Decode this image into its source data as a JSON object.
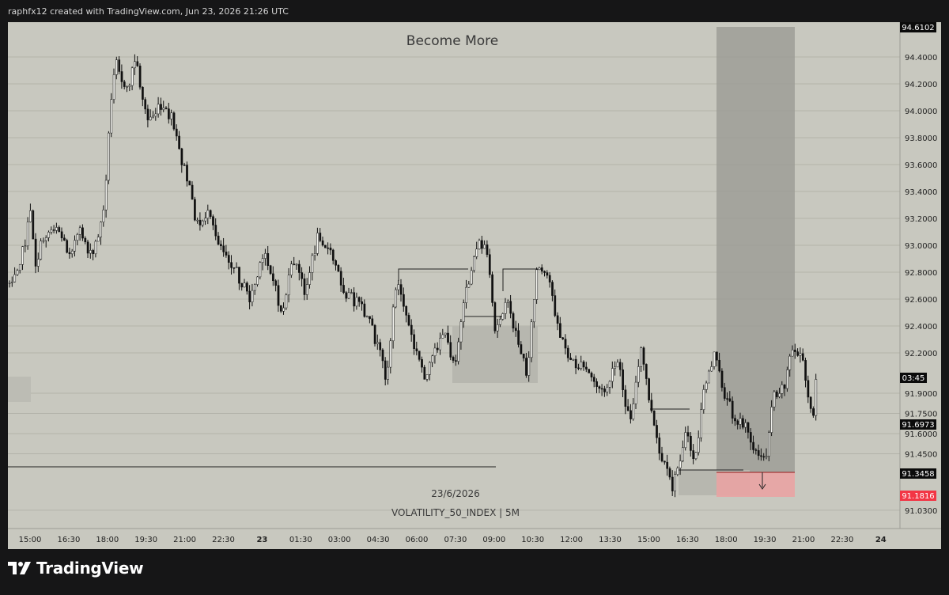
{
  "header": {
    "caption": "raphfx12 created with TradingView.com, Jun 23, 2026 21:26 UTC"
  },
  "chart": {
    "title": "Become More",
    "date_label": "23/6/2026",
    "symbol_label": "VOLATILITY_50_INDEX | 5M",
    "price_ticks": [
      "94.4000",
      "94.2000",
      "94.0000",
      "93.8000",
      "93.6000",
      "93.4000",
      "93.2000",
      "93.0000",
      "92.8000",
      "92.6000",
      "92.4000",
      "92.2000",
      "91.9000",
      "91.7500",
      "91.6000",
      "91.4500",
      "91.0300"
    ],
    "time_ticks": [
      "15:00",
      "16:30",
      "18:00",
      "19:30",
      "21:00",
      "22:30",
      "23",
      "01:30",
      "03:00",
      "04:30",
      "06:00",
      "07:30",
      "09:00",
      "10:30",
      "12:00",
      "13:30",
      "15:00",
      "16:30",
      "18:00",
      "19:30",
      "21:00",
      "22:30",
      "24"
    ],
    "badges": {
      "top": "94.6102",
      "countdown": "03:45",
      "current": "91.6973",
      "level": "91.3458",
      "stop": "91.1816"
    },
    "colors": {
      "background": "#c8c8bf",
      "candles": "#111111",
      "zone_dark": "#9e9e96",
      "zone_light": "#b7b7af",
      "stop_zone": "#e9a3a3",
      "stop_badge": "#f23645"
    }
  },
  "footer": {
    "brand": "TradingView"
  }
}
